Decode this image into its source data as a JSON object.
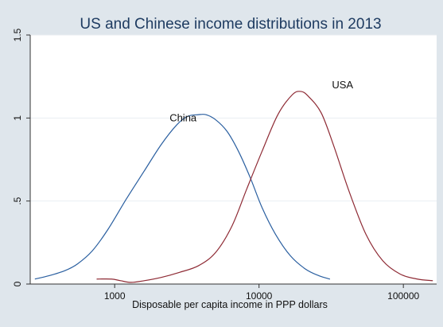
{
  "chart_data": {
    "type": "line",
    "title": "US and Chinese income distributions in 2013",
    "xlabel": "Disposable per capita income in PPP dollars",
    "ylabel": "",
    "x_scale": "log",
    "xlim": [
      260,
      170000
    ],
    "ylim": [
      0,
      1.5
    ],
    "x_ticks": [
      1000,
      10000,
      100000
    ],
    "x_tick_labels": [
      "1000",
      "10000",
      "100000"
    ],
    "y_ticks": [
      0,
      0.5,
      1,
      1.5
    ],
    "y_tick_labels": [
      "0",
      ".5",
      "1",
      "1.5"
    ],
    "grid": true,
    "legend": "none",
    "series": [
      {
        "name": "China",
        "color": "#2a5fa0",
        "x": [
          280,
          350,
          450,
          550,
          700,
          900,
          1200,
          1600,
          2100,
          2700,
          3200,
          3800,
          4300,
          5000,
          6000,
          7200,
          8700,
          10500,
          13000,
          16500,
          21000,
          26000,
          31000
        ],
        "y": [
          0.03,
          0.05,
          0.08,
          0.12,
          0.2,
          0.33,
          0.51,
          0.68,
          0.84,
          0.96,
          1.01,
          1.02,
          1.02,
          0.99,
          0.92,
          0.8,
          0.64,
          0.46,
          0.3,
          0.17,
          0.09,
          0.05,
          0.03
        ]
      },
      {
        "name": "USA",
        "color": "#8e2a34",
        "x": [
          750,
          950,
          1100,
          1300,
          1600,
          2100,
          2800,
          3800,
          5000,
          6500,
          8200,
          10500,
          13500,
          17000,
          19500,
          22000,
          27000,
          33000,
          42000,
          55000,
          72000,
          95000,
          125000,
          160000
        ],
        "y": [
          0.03,
          0.03,
          0.02,
          0.01,
          0.02,
          0.04,
          0.07,
          0.11,
          0.19,
          0.35,
          0.57,
          0.8,
          1.02,
          1.14,
          1.16,
          1.13,
          1.03,
          0.83,
          0.56,
          0.3,
          0.14,
          0.06,
          0.03,
          0.02
        ]
      }
    ],
    "annotations": [
      {
        "text": "China",
        "x": 2400,
        "y": 0.98
      },
      {
        "text": "USA",
        "x": 32000,
        "y": 1.18
      }
    ]
  }
}
